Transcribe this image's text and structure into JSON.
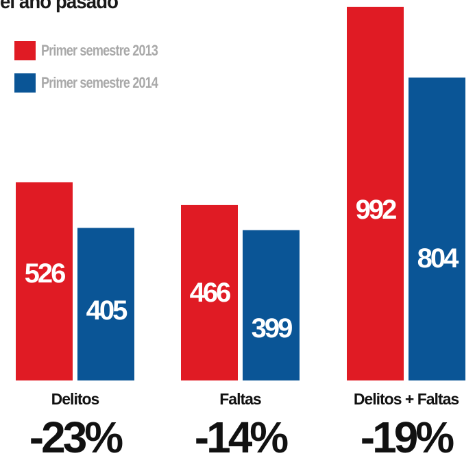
{
  "title": "el año pasado",
  "colors": {
    "series_2013": "#e01b24",
    "series_2014": "#0a5596"
  },
  "chart_data": {
    "type": "bar",
    "title": "el año pasado",
    "xlabel": "",
    "ylabel": "",
    "ylim": [
      0,
      1000
    ],
    "grid": false,
    "legend_position": "top-left",
    "categories": [
      "Delitos",
      "Faltas",
      "Delitos + Faltas"
    ],
    "series": [
      {
        "name": "Primer semestre 2013",
        "color": "#e01b24",
        "values": [
          526,
          466,
          992
        ]
      },
      {
        "name": "Primer semestre 2014",
        "color": "#0a5596",
        "values": [
          405,
          399,
          804
        ]
      }
    ],
    "changes": [
      "-23%",
      "-14%",
      "-19%"
    ]
  }
}
